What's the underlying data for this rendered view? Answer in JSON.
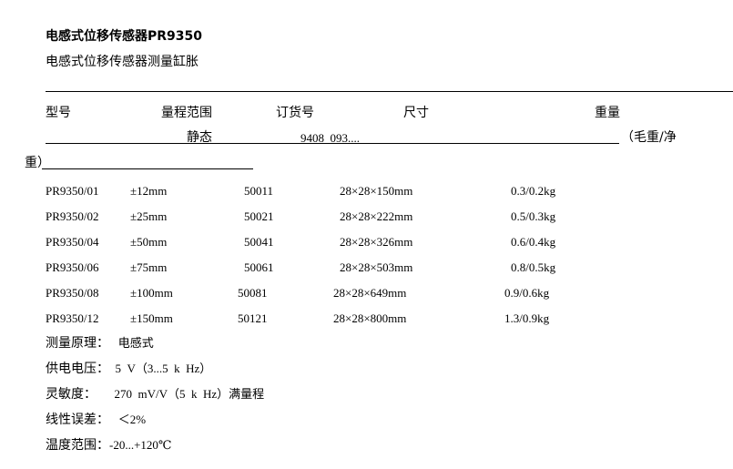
{
  "title": "电感式位移传感器PR9350",
  "subtitle": "电感式位移传感器测量缸胀",
  "headers": {
    "model": "型号",
    "range": "量程范围",
    "range_sub": "静态",
    "order": "订货号",
    "order_sub": "9408  093....",
    "size": "尺寸",
    "weight": "重量",
    "weight_sub": "（毛重/净",
    "weight_sub2": "重）"
  },
  "rows": [
    {
      "model": "PR9350/01",
      "range": "±12mm",
      "order": "50011",
      "size": "28×28×150mm",
      "weight": "0.3/0.2kg"
    },
    {
      "model": "PR9350/02",
      "range": "±25mm",
      "order": "50021",
      "size": "28×28×222mm",
      "weight": "0.5/0.3kg"
    },
    {
      "model": "PR9350/04",
      "range": "±50mm",
      "order": "50041",
      "size": "28×28×326mm",
      "weight": "0.6/0.4kg"
    },
    {
      "model": "PR9350/06",
      "range": "±75mm",
      "order": "50061",
      "size": "28×28×503mm",
      "weight": "0.8/0.5kg"
    },
    {
      "model": "PR9350/08",
      "range": "±100mm",
      "order": "50081",
      "size": "28×28×649mm",
      "weight": "0.9/0.6kg"
    },
    {
      "model": "PR9350/12",
      "range": "±150mm",
      "order": "50121",
      "size": "28×28×800mm",
      "weight": "1.3/0.9kg"
    }
  ],
  "specs": [
    {
      "label": "测量原理：",
      "value": "   电感式"
    },
    {
      "label": "供电电压：",
      "value": "  5  V（3...5  k  Hz）"
    },
    {
      "label": "灵敏度：",
      "value": "      270  mV/V（5  k  Hz）满量程"
    },
    {
      "label": "线性误差：",
      "value": "   ＜2%"
    },
    {
      "label": "温度范围：",
      "value": "-20...+120℃"
    }
  ]
}
